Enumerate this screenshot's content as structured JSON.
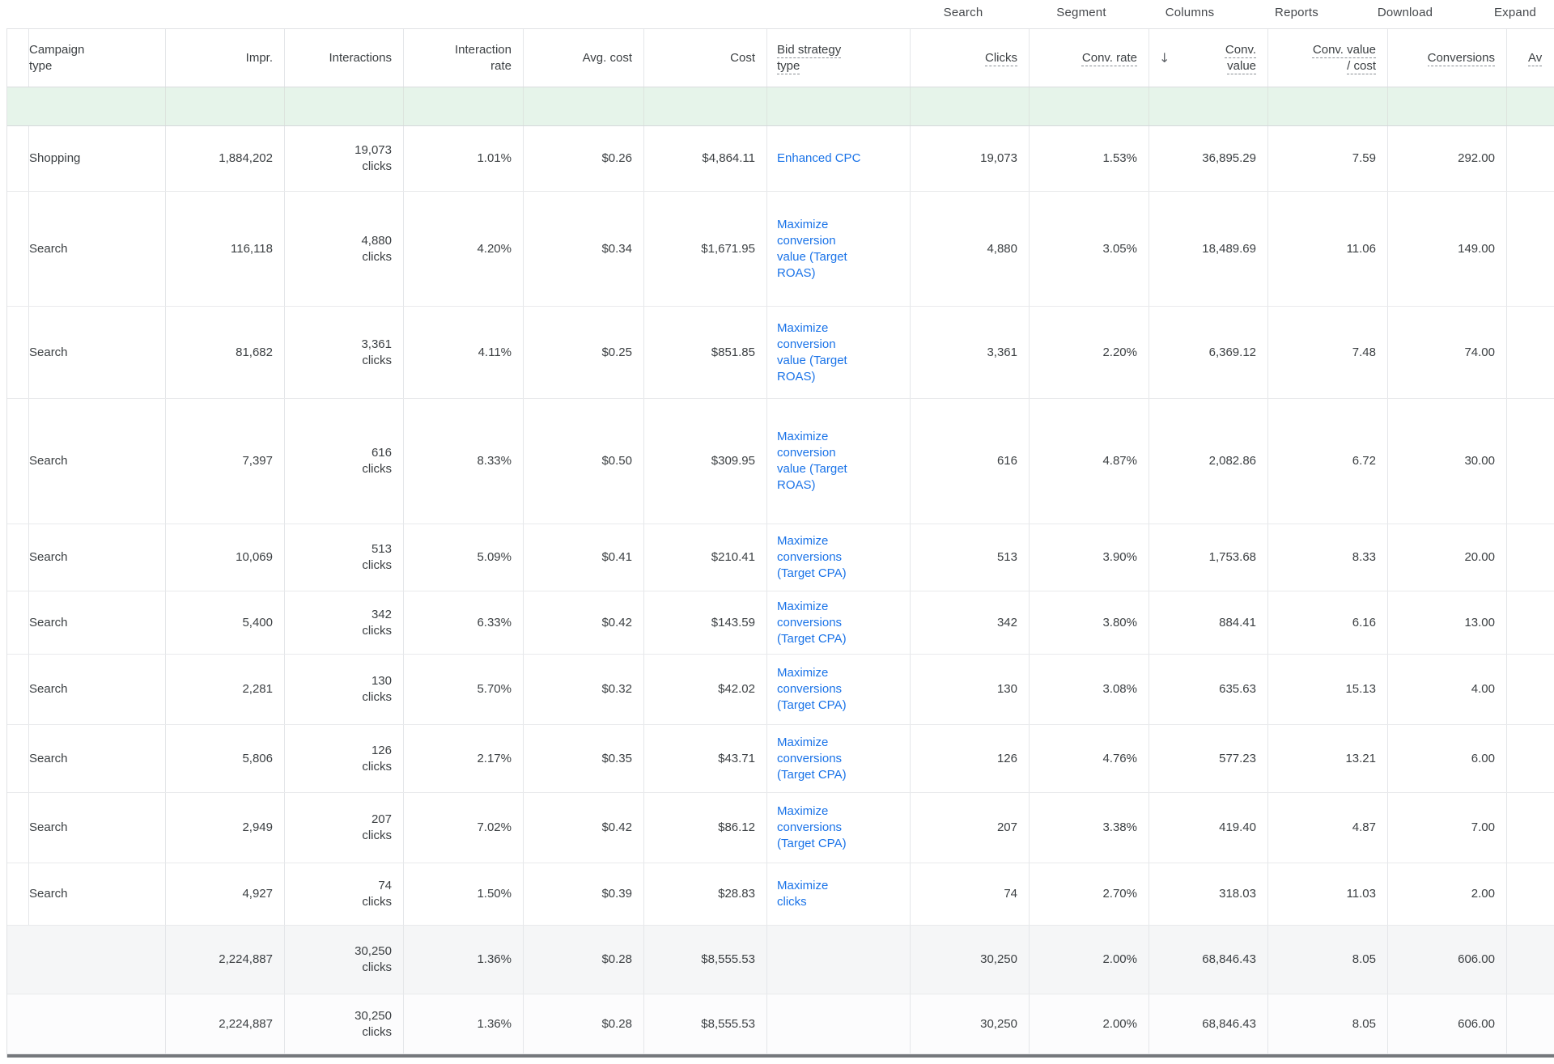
{
  "toolbar": {
    "items": [
      "Search",
      "Segment",
      "Columns",
      "Reports",
      "Download",
      "Expand"
    ]
  },
  "table": {
    "columns": [
      {
        "id": "campaign_type",
        "label": "Campaign type",
        "sortable": false
      },
      {
        "id": "impr",
        "label": "Impr.",
        "sortable": false
      },
      {
        "id": "interactions",
        "label": "Interactions",
        "sortable": false
      },
      {
        "id": "interaction_rate",
        "label": "Interaction rate",
        "sortable": false
      },
      {
        "id": "avg_cost",
        "label": "Avg. cost",
        "sortable": false
      },
      {
        "id": "cost",
        "label": "Cost",
        "sortable": false
      },
      {
        "id": "bid_strategy",
        "label": "Bid strategy type",
        "sortable": true
      },
      {
        "id": "clicks",
        "label": "Clicks",
        "sortable": true
      },
      {
        "id": "conv_rate",
        "label": "Conv. rate",
        "sortable": true
      },
      {
        "id": "conv_value",
        "label": "Conv. value",
        "sortable": true,
        "sorted": "descending"
      },
      {
        "id": "conv_value_per_cost",
        "label": "Conv. value / cost",
        "sortable": true
      },
      {
        "id": "conversions",
        "label": "Conversions",
        "sortable": true
      },
      {
        "id": "avg_extra",
        "label": "Av",
        "sortable": true
      }
    ],
    "rows": [
      {
        "campaign_type": "Shopping",
        "impr": "1,884,202",
        "interactions": "19,073",
        "interactions_unit": "clicks",
        "interaction_rate": "1.01%",
        "avg_cost": "$0.26",
        "cost": "$4,864.11",
        "bid_strategy": "Enhanced CPC",
        "clicks": "19,073",
        "conv_rate": "1.53%",
        "conv_value": "36,895.29",
        "conv_value_per_cost": "7.59",
        "conversions": "292.00"
      },
      {
        "campaign_type": "Search",
        "impr": "116,118",
        "interactions": "4,880",
        "interactions_unit": "clicks",
        "interaction_rate": "4.20%",
        "avg_cost": "$0.34",
        "cost": "$1,671.95",
        "bid_strategy": "Maximize conversion value (Target ROAS)",
        "clicks": "4,880",
        "conv_rate": "3.05%",
        "conv_value": "18,489.69",
        "conv_value_per_cost": "11.06",
        "conversions": "149.00"
      },
      {
        "campaign_type": "Search",
        "impr": "81,682",
        "interactions": "3,361",
        "interactions_unit": "clicks",
        "interaction_rate": "4.11%",
        "avg_cost": "$0.25",
        "cost": "$851.85",
        "bid_strategy": "Maximize conversion value (Target ROAS)",
        "clicks": "3,361",
        "conv_rate": "2.20%",
        "conv_value": "6,369.12",
        "conv_value_per_cost": "7.48",
        "conversions": "74.00"
      },
      {
        "campaign_type": "Search",
        "impr": "7,397",
        "interactions": "616",
        "interactions_unit": "clicks",
        "interaction_rate": "8.33%",
        "avg_cost": "$0.50",
        "cost": "$309.95",
        "bid_strategy": "Maximize conversion value (Target ROAS)",
        "clicks": "616",
        "conv_rate": "4.87%",
        "conv_value": "2,082.86",
        "conv_value_per_cost": "6.72",
        "conversions": "30.00"
      },
      {
        "campaign_type": "Search",
        "impr": "10,069",
        "interactions": "513",
        "interactions_unit": "clicks",
        "interaction_rate": "5.09%",
        "avg_cost": "$0.41",
        "cost": "$210.41",
        "bid_strategy": "Maximize conversions (Target CPA)",
        "clicks": "513",
        "conv_rate": "3.90%",
        "conv_value": "1,753.68",
        "conv_value_per_cost": "8.33",
        "conversions": "20.00"
      },
      {
        "campaign_type": "Search",
        "impr": "5,400",
        "interactions": "342",
        "interactions_unit": "clicks",
        "interaction_rate": "6.33%",
        "avg_cost": "$0.42",
        "cost": "$143.59",
        "bid_strategy": "Maximize conversions (Target CPA)",
        "clicks": "342",
        "conv_rate": "3.80%",
        "conv_value": "884.41",
        "conv_value_per_cost": "6.16",
        "conversions": "13.00"
      },
      {
        "campaign_type": "Search",
        "impr": "2,281",
        "interactions": "130",
        "interactions_unit": "clicks",
        "interaction_rate": "5.70%",
        "avg_cost": "$0.32",
        "cost": "$42.02",
        "bid_strategy": "Maximize conversions (Target CPA)",
        "clicks": "130",
        "conv_rate": "3.08%",
        "conv_value": "635.63",
        "conv_value_per_cost": "15.13",
        "conversions": "4.00"
      },
      {
        "campaign_type": "Search",
        "impr": "5,806",
        "interactions": "126",
        "interactions_unit": "clicks",
        "interaction_rate": "2.17%",
        "avg_cost": "$0.35",
        "cost": "$43.71",
        "bid_strategy": "Maximize conversions (Target CPA)",
        "clicks": "126",
        "conv_rate": "4.76%",
        "conv_value": "577.23",
        "conv_value_per_cost": "13.21",
        "conversions": "6.00"
      },
      {
        "campaign_type": "Search",
        "impr": "2,949",
        "interactions": "207",
        "interactions_unit": "clicks",
        "interaction_rate": "7.02%",
        "avg_cost": "$0.42",
        "cost": "$86.12",
        "bid_strategy": "Maximize conversions (Target CPA)",
        "clicks": "207",
        "conv_rate": "3.38%",
        "conv_value": "419.40",
        "conv_value_per_cost": "4.87",
        "conversions": "7.00"
      },
      {
        "campaign_type": "Search",
        "impr": "4,927",
        "interactions": "74",
        "interactions_unit": "clicks",
        "interaction_rate": "1.50%",
        "avg_cost": "$0.39",
        "cost": "$28.83",
        "bid_strategy": "Maximize clicks",
        "clicks": "74",
        "conv_rate": "2.70%",
        "conv_value": "318.03",
        "conv_value_per_cost": "11.03",
        "conversions": "2.00"
      }
    ],
    "totals": [
      {
        "impr": "2,224,887",
        "interactions": "30,250",
        "interactions_unit": "clicks",
        "interaction_rate": "1.36%",
        "avg_cost": "$0.28",
        "cost": "$8,555.53",
        "clicks": "30,250",
        "conv_rate": "2.00%",
        "conv_value": "68,846.43",
        "conv_value_per_cost": "8.05",
        "conversions": "606.00"
      },
      {
        "impr": "2,224,887",
        "interactions": "30,250",
        "interactions_unit": "clicks",
        "interaction_rate": "1.36%",
        "avg_cost": "$0.28",
        "cost": "$8,555.53",
        "clicks": "30,250",
        "conv_rate": "2.00%",
        "conv_value": "68,846.43",
        "conv_value_per_cost": "8.05",
        "conversions": "606.00"
      }
    ],
    "sort_icon": "↓"
  },
  "colors": {
    "link_blue": "#1a73e8",
    "filter_row_green": "#e6f4ea",
    "text_dark": "#3c4043",
    "total_row_gray": "#f5f6f7"
  }
}
